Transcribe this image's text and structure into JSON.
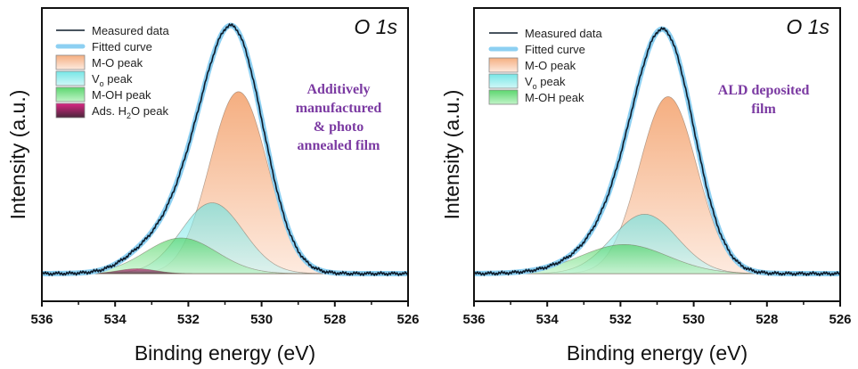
{
  "colors": {
    "measured": "#0d1b2a",
    "fitted": "#8dd0f2",
    "annotation": "#7b3aa2",
    "M-O peak": [
      "#f3a06a",
      "#fde7da"
    ],
    "Vo peak": [
      "#5ee2e2",
      "#c9f6f6"
    ],
    "M-OH peak": [
      "#3fcf55",
      "#b7f2bf"
    ],
    "Ads. H2O peak": [
      "#d4006e",
      "#2a0018"
    ]
  },
  "chart_data": [
    {
      "type": "line",
      "title": "O 1s",
      "annotation": [
        "Additively",
        "manufactured",
        "& photo",
        "annealed film"
      ],
      "xlabel": "Binding energy (eV)",
      "ylabel": "Intensity (a.u.)",
      "xlim": [
        536,
        526
      ],
      "xticks": [
        "536",
        "534",
        "532",
        "530",
        "528",
        "526"
      ],
      "minor_xticks": [
        535,
        533,
        531,
        529,
        527
      ],
      "y_ticks_shown": false,
      "grid": false,
      "legend_position": "top-left",
      "legend": [
        {
          "label": "Measured data",
          "kind": "line"
        },
        {
          "label": "Fitted curve",
          "kind": "thick-line"
        },
        {
          "label": "M-O peak",
          "kind": "patch"
        },
        {
          "label": "V",
          "sub": "o",
          "rest": " peak",
          "kind": "patch"
        },
        {
          "label": "M-OH peak",
          "kind": "patch"
        },
        {
          "label": "Ads. H",
          "sub": "2",
          "rest": "O peak",
          "kind": "patch"
        }
      ],
      "peaks": [
        {
          "name": "M-O peak",
          "center_eV": 530.63,
          "fwhm_eV": 1.85,
          "relative_intensity": 0.745
        },
        {
          "name": "Vo peak",
          "center_eV": 531.35,
          "fwhm_eV": 2.0,
          "relative_intensity": 0.29
        },
        {
          "name": "M-OH peak",
          "center_eV": 532.2,
          "fwhm_eV": 2.3,
          "relative_intensity": 0.146
        },
        {
          "name": "Ads. H2O peak",
          "center_eV": 533.4,
          "fwhm_eV": 1.2,
          "relative_intensity": 0.02
        }
      ]
    },
    {
      "type": "line",
      "title": "O 1s",
      "annotation": [
        "ALD deposited",
        "film"
      ],
      "xlabel": "Binding energy (eV)",
      "ylabel": "Intensity (a.u.)",
      "xlim": [
        536,
        526
      ],
      "xticks": [
        "536",
        "534",
        "532",
        "530",
        "528",
        "526"
      ],
      "minor_xticks": [
        535,
        533,
        531,
        529,
        527
      ],
      "y_ticks_shown": false,
      "grid": false,
      "legend_position": "top-left",
      "legend": [
        {
          "label": "Measured data",
          "kind": "line"
        },
        {
          "label": "Fitted curve",
          "kind": "thick-line"
        },
        {
          "label": "M-O peak",
          "kind": "patch"
        },
        {
          "label": "V",
          "sub": "o",
          "rest": " peak",
          "kind": "patch"
        },
        {
          "label": "M-OH peak",
          "kind": "patch"
        }
      ],
      "peaks": [
        {
          "name": "M-O peak",
          "center_eV": 530.7,
          "fwhm_eV": 1.85,
          "relative_intensity": 0.73
        },
        {
          "name": "Vo peak",
          "center_eV": 531.34,
          "fwhm_eV": 2.1,
          "relative_intensity": 0.245
        },
        {
          "name": "M-OH peak",
          "center_eV": 531.9,
          "fwhm_eV": 2.8,
          "relative_intensity": 0.12
        }
      ]
    }
  ]
}
